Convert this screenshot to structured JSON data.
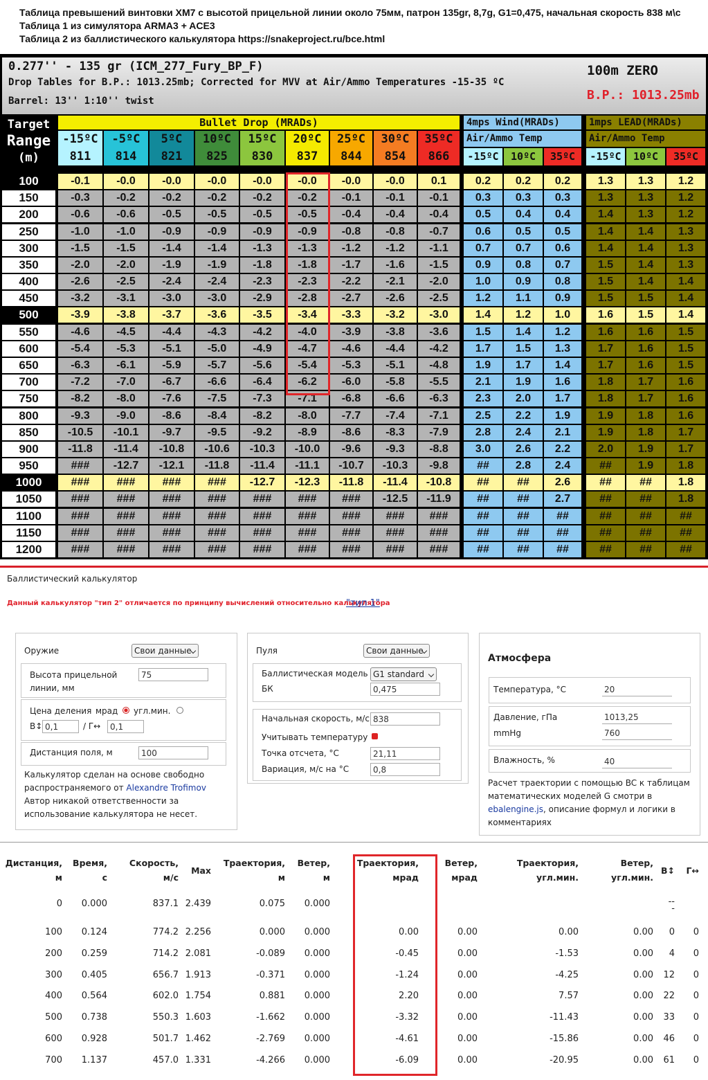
{
  "header": {
    "lines": [
      "Таблица превышений винтовки XM7 с высотой прицельной линии около 75мм, патрон 135gr, 8,7g, G1=0,475, начальная скорость 838 м\\с",
      "Таблица 1 из симулятора ARMA3 + ACE3",
      "Таблица 2 из баллистического калькулятора https://snakeproject.ru/bce.html"
    ]
  },
  "drop_table": {
    "title": "0.277'' - 135 gr (ICM_277_Fury_BP_F)",
    "subtitle": "Drop Tables for B.P.: 1013.25mb; Corrected for MVV at Air/Ammo Temperatures -15-35 ºC",
    "barrel": "Barrel: 13'' 1:10'' twist",
    "zero": "100m ZERO",
    "pressure": "B.P.: 1013.25mb",
    "range_header": [
      "Target",
      "Range",
      "(m)"
    ],
    "drop_header": "Bullet Drop (MRADs)",
    "drop_columns": [
      {
        "temp": "-15ºC",
        "velocity": "811"
      },
      {
        "temp": "-5ºC",
        "velocity": "814"
      },
      {
        "temp": "5ºC",
        "velocity": "821"
      },
      {
        "temp": "10ºC",
        "velocity": "825"
      },
      {
        "temp": "15ºC",
        "velocity": "830"
      },
      {
        "temp": "20ºC",
        "velocity": "837"
      },
      {
        "temp": "25ºC",
        "velocity": "844"
      },
      {
        "temp": "30ºC",
        "velocity": "854"
      },
      {
        "temp": "35ºC",
        "velocity": "866"
      }
    ],
    "wind_header": "4mps Wind(MRADs)",
    "wind_subheader": "Air/Ammo Temp",
    "wind_columns": [
      "-15ºC",
      "10ºC",
      "35ºC"
    ],
    "lead_header": "1mps LEAD(MRADs)",
    "lead_subheader": "Air/Ammo Temp",
    "lead_columns": [
      "-15ºC",
      "10ºC",
      "35ºC"
    ],
    "rows": [
      {
        "range": "100",
        "drop": [
          "-0.1",
          "-0.0",
          "-0.0",
          "-0.0",
          "-0.0",
          "-0.0",
          "-0.0",
          "-0.0",
          "0.1"
        ],
        "wind": [
          "0.2",
          "0.2",
          "0.2"
        ],
        "lead": [
          "1.3",
          "1.3",
          "1.2"
        ]
      },
      {
        "range": "150",
        "drop": [
          "-0.3",
          "-0.2",
          "-0.2",
          "-0.2",
          "-0.2",
          "-0.2",
          "-0.1",
          "-0.1",
          "-0.1"
        ],
        "wind": [
          "0.3",
          "0.3",
          "0.3"
        ],
        "lead": [
          "1.3",
          "1.3",
          "1.2"
        ]
      },
      {
        "range": "200",
        "drop": [
          "-0.6",
          "-0.6",
          "-0.5",
          "-0.5",
          "-0.5",
          "-0.5",
          "-0.4",
          "-0.4",
          "-0.4"
        ],
        "wind": [
          "0.5",
          "0.4",
          "0.4"
        ],
        "lead": [
          "1.4",
          "1.3",
          "1.2"
        ]
      },
      {
        "range": "250",
        "drop": [
          "-1.0",
          "-1.0",
          "-0.9",
          "-0.9",
          "-0.9",
          "-0.9",
          "-0.8",
          "-0.8",
          "-0.7"
        ],
        "wind": [
          "0.6",
          "0.5",
          "0.5"
        ],
        "lead": [
          "1.4",
          "1.4",
          "1.3"
        ]
      },
      {
        "range": "300",
        "drop": [
          "-1.5",
          "-1.5",
          "-1.4",
          "-1.4",
          "-1.3",
          "-1.3",
          "-1.2",
          "-1.2",
          "-1.1"
        ],
        "wind": [
          "0.7",
          "0.7",
          "0.6"
        ],
        "lead": [
          "1.4",
          "1.4",
          "1.3"
        ]
      },
      {
        "range": "350",
        "drop": [
          "-2.0",
          "-2.0",
          "-1.9",
          "-1.9",
          "-1.8",
          "-1.8",
          "-1.7",
          "-1.6",
          "-1.5"
        ],
        "wind": [
          "0.9",
          "0.8",
          "0.7"
        ],
        "lead": [
          "1.5",
          "1.4",
          "1.3"
        ]
      },
      {
        "range": "400",
        "drop": [
          "-2.6",
          "-2.5",
          "-2.4",
          "-2.4",
          "-2.3",
          "-2.3",
          "-2.2",
          "-2.1",
          "-2.0"
        ],
        "wind": [
          "1.0",
          "0.9",
          "0.8"
        ],
        "lead": [
          "1.5",
          "1.4",
          "1.4"
        ]
      },
      {
        "range": "450",
        "drop": [
          "-3.2",
          "-3.1",
          "-3.0",
          "-3.0",
          "-2.9",
          "-2.8",
          "-2.7",
          "-2.6",
          "-2.5"
        ],
        "wind": [
          "1.2",
          "1.1",
          "0.9"
        ],
        "lead": [
          "1.5",
          "1.5",
          "1.4"
        ]
      },
      {
        "range": "500",
        "drop": [
          "-3.9",
          "-3.8",
          "-3.7",
          "-3.6",
          "-3.5",
          "-3.4",
          "-3.3",
          "-3.2",
          "-3.0"
        ],
        "wind": [
          "1.4",
          "1.2",
          "1.0"
        ],
        "lead": [
          "1.6",
          "1.5",
          "1.4"
        ]
      },
      {
        "range": "550",
        "drop": [
          "-4.6",
          "-4.5",
          "-4.4",
          "-4.3",
          "-4.2",
          "-4.0",
          "-3.9",
          "-3.8",
          "-3.6"
        ],
        "wind": [
          "1.5",
          "1.4",
          "1.2"
        ],
        "lead": [
          "1.6",
          "1.6",
          "1.5"
        ]
      },
      {
        "range": "600",
        "drop": [
          "-5.4",
          "-5.3",
          "-5.1",
          "-5.0",
          "-4.9",
          "-4.7",
          "-4.6",
          "-4.4",
          "-4.2"
        ],
        "wind": [
          "1.7",
          "1.5",
          "1.3"
        ],
        "lead": [
          "1.7",
          "1.6",
          "1.5"
        ]
      },
      {
        "range": "650",
        "drop": [
          "-6.3",
          "-6.1",
          "-5.9",
          "-5.7",
          "-5.6",
          "-5.4",
          "-5.3",
          "-5.1",
          "-4.8"
        ],
        "wind": [
          "1.9",
          "1.7",
          "1.4"
        ],
        "lead": [
          "1.7",
          "1.6",
          "1.5"
        ]
      },
      {
        "range": "700",
        "drop": [
          "-7.2",
          "-7.0",
          "-6.7",
          "-6.6",
          "-6.4",
          "-6.2",
          "-6.0",
          "-5.8",
          "-5.5"
        ],
        "wind": [
          "2.1",
          "1.9",
          "1.6"
        ],
        "lead": [
          "1.8",
          "1.7",
          "1.6"
        ]
      },
      {
        "range": "750",
        "drop": [
          "-8.2",
          "-8.0",
          "-7.6",
          "-7.5",
          "-7.3",
          "-7.1",
          "-6.8",
          "-6.6",
          "-6.3"
        ],
        "wind": [
          "2.3",
          "2.0",
          "1.7"
        ],
        "lead": [
          "1.8",
          "1.7",
          "1.6"
        ]
      },
      {
        "range": "800",
        "drop": [
          "-9.3",
          "-9.0",
          "-8.6",
          "-8.4",
          "-8.2",
          "-8.0",
          "-7.7",
          "-7.4",
          "-7.1"
        ],
        "wind": [
          "2.5",
          "2.2",
          "1.9"
        ],
        "lead": [
          "1.9",
          "1.8",
          "1.6"
        ]
      },
      {
        "range": "850",
        "drop": [
          "-10.5",
          "-10.1",
          "-9.7",
          "-9.5",
          "-9.2",
          "-8.9",
          "-8.6",
          "-8.3",
          "-7.9"
        ],
        "wind": [
          "2.8",
          "2.4",
          "2.1"
        ],
        "lead": [
          "1.9",
          "1.8",
          "1.7"
        ]
      },
      {
        "range": "900",
        "drop": [
          "-11.8",
          "-11.4",
          "-10.8",
          "-10.6",
          "-10.3",
          "-10.0",
          "-9.6",
          "-9.3",
          "-8.8"
        ],
        "wind": [
          "3.0",
          "2.6",
          "2.2"
        ],
        "lead": [
          "2.0",
          "1.9",
          "1.7"
        ]
      },
      {
        "range": "950",
        "drop": [
          "###",
          "-12.7",
          "-12.1",
          "-11.8",
          "-11.4",
          "-11.1",
          "-10.7",
          "-10.3",
          "-9.8"
        ],
        "wind": [
          "##",
          "2.8",
          "2.4"
        ],
        "lead": [
          "##",
          "1.9",
          "1.8"
        ]
      },
      {
        "range": "1000",
        "drop": [
          "###",
          "###",
          "###",
          "###",
          "-12.7",
          "-12.3",
          "-11.8",
          "-11.4",
          "-10.8"
        ],
        "wind": [
          "##",
          "##",
          "2.6"
        ],
        "lead": [
          "##",
          "##",
          "1.8"
        ]
      },
      {
        "range": "1050",
        "drop": [
          "###",
          "###",
          "###",
          "###",
          "###",
          "###",
          "###",
          "-12.5",
          "-11.9"
        ],
        "wind": [
          "##",
          "##",
          "2.7"
        ],
        "lead": [
          "##",
          "##",
          "1.8"
        ]
      },
      {
        "range": "1100",
        "drop": [
          "###",
          "###",
          "###",
          "###",
          "###",
          "###",
          "###",
          "###",
          "###"
        ],
        "wind": [
          "##",
          "##",
          "##"
        ],
        "lead": [
          "##",
          "##",
          "##"
        ]
      },
      {
        "range": "1150",
        "drop": [
          "###",
          "###",
          "###",
          "###",
          "###",
          "###",
          "###",
          "###",
          "###"
        ],
        "wind": [
          "##",
          "##",
          "##"
        ],
        "lead": [
          "##",
          "##",
          "##"
        ]
      },
      {
        "range": "1200",
        "drop": [
          "###",
          "###",
          "###",
          "###",
          "###",
          "###",
          "###",
          "###",
          "###"
        ],
        "wind": [
          "##",
          "##",
          "##"
        ],
        "lead": [
          "##",
          "##",
          "##"
        ]
      }
    ]
  },
  "calculator": {
    "title": "Баллистический калькулятор",
    "note": "Данный калькулятор \"тип 2\" отличается по принципу вычислений относительно калькулятора",
    "note_link": "\"тип 1\"",
    "weapon": {
      "title": "Оружие",
      "preset": "Свои данные",
      "sight_height_label": "Высота прицельной линии, мм",
      "sight_height": "75",
      "click_label": "Цена деления",
      "unit_mrad": "мрад",
      "unit_moa": "угл.мин.",
      "vertical_label": "B↕",
      "vertical": "0,1",
      "horizontal_label": "/ Г↔",
      "horizontal": "0,1",
      "zero_label": "Дистанция поля, м",
      "zero": "100",
      "credit": "Калькулятор сделан на основе свободно распространяемого от",
      "credit_link": "Alexandre Trofimov",
      "disclaimer": "Автор никакой ответственности за использование калькулятора не несет."
    },
    "bullet": {
      "title": "Пуля",
      "preset": "Свои данные",
      "model_label": "Баллистическая модель",
      "model": "G1 standard",
      "bc_label": "БК",
      "bc": "0,475",
      "velocity_label": "Начальная скорость, м/с",
      "velocity": "838",
      "temperature_label": "Учитывать температуру",
      "reference_label": "Точка отсчета, °С",
      "reference": "21,11",
      "variation_label": "Вариация, м/с на °С",
      "variation": "0,8"
    },
    "atmosphere": {
      "title": "Атмосфера",
      "temperature_label": "Температура, °С",
      "temperature": "20",
      "pressure_label": "Давление, гПа",
      "pressure": "1013,25",
      "mmhg_label": "mmHg",
      "mmhg": "760",
      "humidity_label": "Влажность, %",
      "humidity": "40",
      "info": "Расчет траектории с помощью BC к таблицам математических моделей G смотри в",
      "info_link": "ebalengine.js",
      "info_tail": ", описание формул и логики в комментариях"
    },
    "results": {
      "columns": [
        "Дистанция, м",
        "Время, с",
        "Скорость, м/с",
        "Max",
        "Траектория, м",
        "Ветер, м",
        "Траектория, мрад",
        "Ветер, мрад",
        "Траектория, угл.мин.",
        "Ветер, угл.мин.",
        "B↕",
        "Г↔"
      ],
      "rows": [
        [
          "0",
          "0.000",
          "837.1",
          "2.439",
          "0.075",
          "0.000",
          null,
          null,
          null,
          null,
          "---",
          null
        ],
        [
          "100",
          "0.124",
          "774.2",
          "2.256",
          "0.000",
          "0.000",
          "0.00",
          "0.00",
          "0.00",
          "0.00",
          "0",
          "0"
        ],
        [
          "200",
          "0.259",
          "714.2",
          "2.081",
          "-0.089",
          "0.000",
          "-0.45",
          "0.00",
          "-1.53",
          "0.00",
          "4",
          "0"
        ],
        [
          "300",
          "0.405",
          "656.7",
          "1.913",
          "-0.371",
          "0.000",
          "-1.24",
          "0.00",
          "-4.25",
          "0.00",
          "12",
          "0"
        ],
        [
          "400",
          "0.564",
          "602.0",
          "1.754",
          "0.881",
          "0.000",
          "2.20",
          "0.00",
          "7.57",
          "0.00",
          "22",
          "0"
        ],
        [
          "500",
          "0.738",
          "550.3",
          "1.603",
          "-1.662",
          "0.000",
          "-3.32",
          "0.00",
          "-11.43",
          "0.00",
          "33",
          "0"
        ],
        [
          "600",
          "0.928",
          "501.7",
          "1.462",
          "-2.769",
          "0.000",
          "-4.61",
          "0.00",
          "-15.86",
          "0.00",
          "46",
          "0"
        ],
        [
          "700",
          "1.137",
          "457.0",
          "1.331",
          "-4.266",
          "0.000",
          "-6.09",
          "0.00",
          "-20.95",
          "0.00",
          "61",
          "0"
        ]
      ]
    }
  }
}
